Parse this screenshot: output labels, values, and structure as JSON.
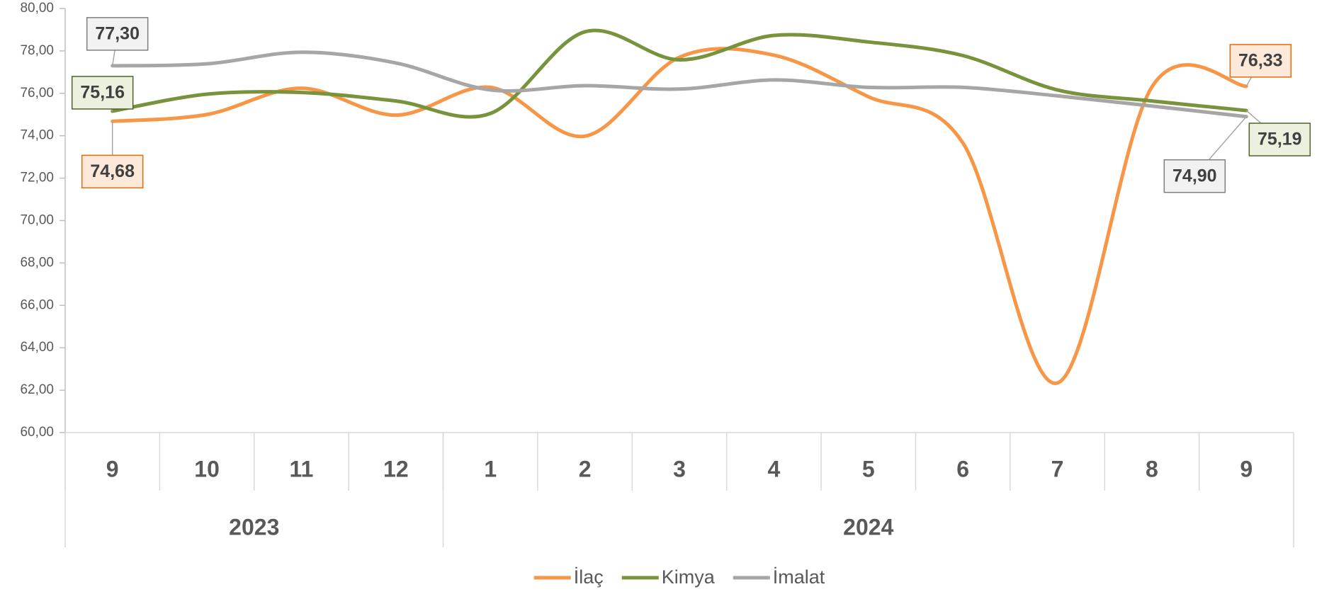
{
  "chart_data": {
    "type": "line",
    "categories": [
      "9",
      "10",
      "11",
      "12",
      "1",
      "2",
      "3",
      "4",
      "5",
      "6",
      "7",
      "8",
      "9"
    ],
    "category_groups": [
      {
        "name": "2023",
        "count": 4
      },
      {
        "name": "2024",
        "count": 9
      }
    ],
    "series": [
      {
        "name": "İlaç",
        "color": "#f79646",
        "values": [
          74.68,
          75.0,
          76.24,
          74.97,
          76.28,
          73.98,
          77.7,
          77.8,
          75.84,
          73.66,
          62.34,
          76.3,
          76.33
        ],
        "value_labels": [
          "74,68",
          null,
          null,
          null,
          null,
          null,
          null,
          null,
          null,
          null,
          null,
          null,
          "76,33"
        ]
      },
      {
        "name": "Kimya",
        "color": "#77933c",
        "values": [
          75.16,
          75.96,
          76.04,
          75.64,
          75.05,
          78.9,
          77.58,
          78.73,
          78.42,
          77.78,
          76.16,
          75.64,
          75.19
        ],
        "value_labels": [
          "75,16",
          null,
          null,
          null,
          null,
          null,
          null,
          null,
          null,
          null,
          null,
          null,
          "75,19"
        ]
      },
      {
        "name": "İmalat",
        "color": "#a6a6a6",
        "values": [
          77.3,
          77.39,
          77.94,
          77.43,
          76.16,
          76.36,
          76.2,
          76.63,
          76.28,
          76.28,
          75.88,
          75.4,
          74.9
        ],
        "value_labels": [
          "77,30",
          null,
          null,
          null,
          null,
          null,
          null,
          null,
          null,
          null,
          null,
          null,
          "74,90"
        ]
      }
    ],
    "ylim": [
      60,
      80
    ],
    "yticks": [
      {
        "value": 60,
        "label": "60,00"
      },
      {
        "value": 62,
        "label": "62,00"
      },
      {
        "value": 64,
        "label": "64,00"
      },
      {
        "value": 66,
        "label": "66,00"
      },
      {
        "value": 68,
        "label": "68,00"
      },
      {
        "value": 70,
        "label": "70,00"
      },
      {
        "value": 72,
        "label": "72,00"
      },
      {
        "value": 74,
        "label": "74,00"
      },
      {
        "value": 76,
        "label": "76,00"
      },
      {
        "value": 78,
        "label": "78,00"
      },
      {
        "value": 80,
        "label": "80,00"
      }
    ],
    "legend": "bottom",
    "smooth": true
  }
}
